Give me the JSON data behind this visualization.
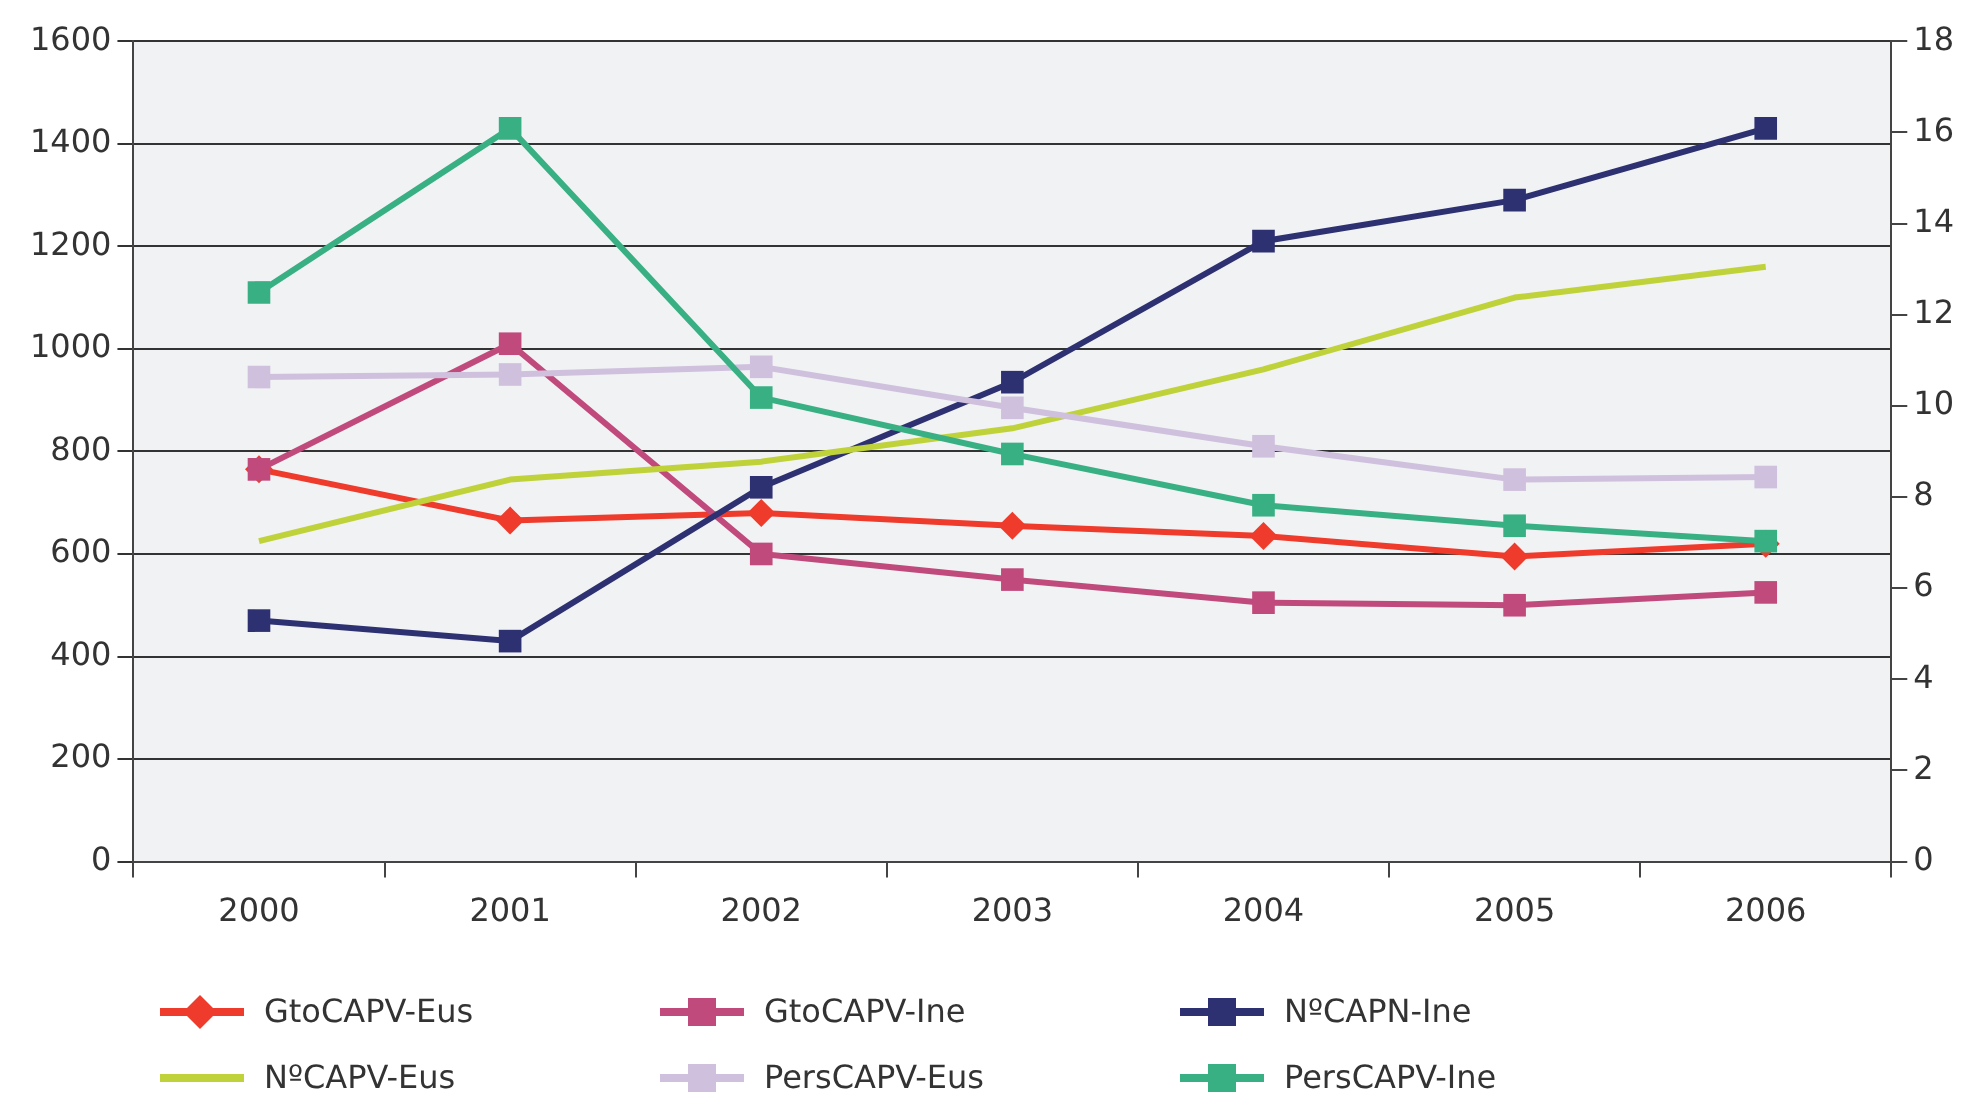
{
  "chart_data": {
    "type": "line",
    "categories": [
      "2000",
      "2001",
      "2002",
      "2003",
      "2004",
      "2005",
      "2006"
    ],
    "series": [
      {
        "name": "GtoCAPV-Eus",
        "color": "#ee3b2b",
        "marker": "diamond",
        "values": [
          765,
          665,
          680,
          655,
          635,
          595,
          620
        ]
      },
      {
        "name": "GtoCAPV-Ine",
        "color": "#c04a7c",
        "marker": "square",
        "values": [
          765,
          1010,
          600,
          550,
          505,
          500,
          525
        ]
      },
      {
        "name": "NºCAPN-Ine",
        "color": "#2e3171",
        "marker": "square",
        "values": [
          470,
          430,
          730,
          935,
          1210,
          1290,
          1430
        ]
      },
      {
        "name": "NºCAPV-Eus",
        "color": "#bfd23a",
        "marker": "none",
        "values": [
          625,
          745,
          780,
          845,
          960,
          1100,
          1160
        ]
      },
      {
        "name": "PersCAPV-Eus",
        "color": "#cfc0de",
        "marker": "square",
        "values": [
          945,
          950,
          965,
          885,
          810,
          745,
          750
        ]
      },
      {
        "name": "PersCAPV-Ine",
        "color": "#38b084",
        "marker": "square",
        "values": [
          1110,
          1430,
          905,
          795,
          695,
          655,
          625
        ]
      }
    ],
    "ylim": [
      0,
      1600
    ],
    "yticks": [
      0,
      200,
      400,
      600,
      800,
      1000,
      1200,
      1400,
      1600
    ],
    "y2lim": [
      0,
      18
    ],
    "y2ticks": [
      0,
      2,
      4,
      6,
      8,
      10,
      12,
      14,
      16,
      18
    ],
    "grid": "y",
    "legend": "bottom"
  }
}
